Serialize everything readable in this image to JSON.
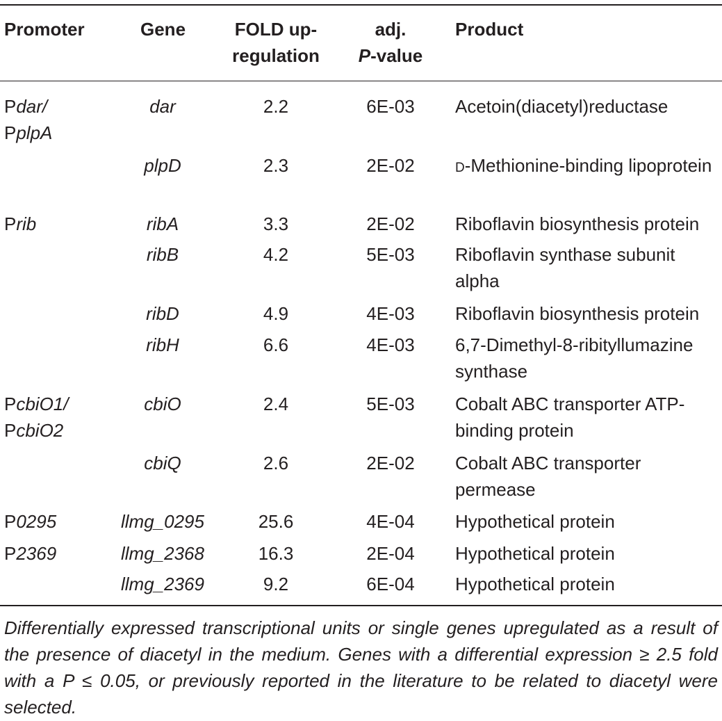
{
  "headers": {
    "promoter": "Promoter",
    "gene": "Gene",
    "fold_line1": "FOLD up-",
    "fold_line2": "regulation",
    "pval_line1": "adj.",
    "pval_p": "P",
    "pval_rest": "-value",
    "product": "Product"
  },
  "rows": [
    {
      "promoter_prefix": "P",
      "promoter_italic": "dar/",
      "promoter2_prefix": "P",
      "promoter2_italic": "plpA",
      "gene": "dar",
      "fold": "2.2",
      "pval": "6E-03",
      "product": "Acetoin(diacetyl)reductase"
    },
    {
      "gene": "plpD",
      "fold": "2.3",
      "pval": "2E-02",
      "product_sc": "d",
      "product": "-Methionine-binding lipoprotein"
    },
    {
      "promoter_prefix": "P",
      "promoter_italic": "rib",
      "gene": "ribA",
      "fold": "3.3",
      "pval": "2E-02",
      "product": "Riboflavin biosynthesis protein"
    },
    {
      "gene": "ribB",
      "fold": "4.2",
      "pval": "5E-03",
      "product": "Riboflavin synthase subunit alpha"
    },
    {
      "gene": "ribD",
      "fold": "4.9",
      "pval": "4E-03",
      "product": "Riboflavin biosynthesis protein"
    },
    {
      "gene": "ribH",
      "fold": "6.6",
      "pval": "4E-03",
      "product": "6,7-Dimethyl-8-ribityllumazine synthase"
    },
    {
      "promoter_prefix": "P",
      "promoter_italic": "cbiO1/",
      "promoter2_prefix": "P",
      "promoter2_italic": "cbiO2",
      "gene": "cbiO",
      "fold": "2.4",
      "pval": "5E-03",
      "product": "Cobalt ABC transporter ATP-binding protein"
    },
    {
      "gene": "cbiQ",
      "fold": "2.6",
      "pval": "2E-02",
      "product": "Cobalt ABC transporter permease"
    },
    {
      "promoter_prefix": "P",
      "promoter_italic": "0295",
      "gene": "llmg_0295",
      "fold": "25.6",
      "pval": "4E-04",
      "product": "Hypothetical protein"
    },
    {
      "promoter_prefix": "P",
      "promoter_italic": "2369",
      "gene": "llmg_2368",
      "fold": "16.3",
      "pval": "2E-04",
      "product": "Hypothetical protein"
    },
    {
      "gene": "llmg_2369",
      "fold": "9.2",
      "pval": "6E-04",
      "product": "Hypothetical protein"
    }
  ],
  "footnote": "Differentially expressed transcriptional units or single genes upregulated as a result of the presence of diacetyl in the medium. Genes with a differential expression ≥ 2.5 fold with a P ≤ 0.05, or previously reported in the literature to be related to diacetyl were selected."
}
